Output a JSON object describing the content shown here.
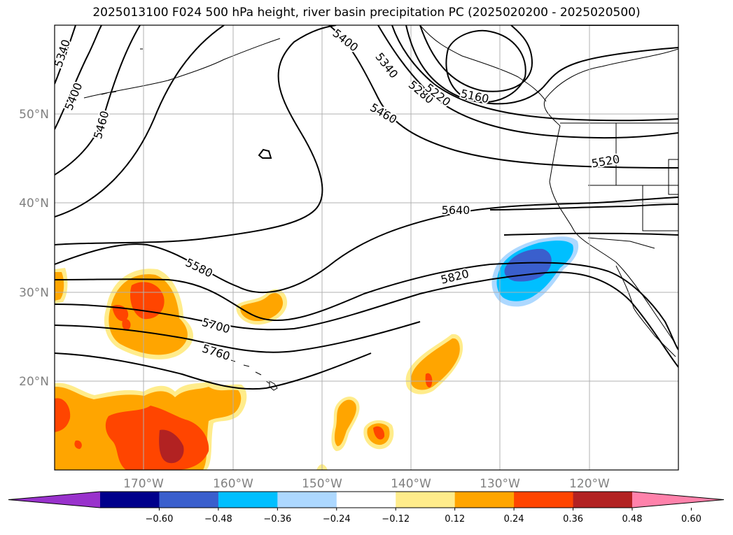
{
  "title": "2025013100 F024 500 hPa height, river basin precipitation PC (2025020200 - 2025020500)",
  "map": {
    "latitude_labels": [
      "50°N",
      "40°N",
      "30°N",
      "20°N"
    ],
    "longitude_labels": [
      "170°W",
      "160°W",
      "150°W",
      "140°W",
      "130°W",
      "120°W"
    ],
    "height_contour_labels": [
      "5340",
      "5400",
      "5460",
      "5400",
      "5340",
      "5280",
      "5220",
      "5160",
      "5460",
      "5520",
      "5640",
      "5580",
      "5820",
      "5700",
      "5760"
    ]
  },
  "colorbar": {
    "colors": [
      "#9932cc",
      "#00008b",
      "#3a5fcd",
      "#00bfff",
      "#add8ff",
      "#ffffff",
      "#ffec8b",
      "#ffa500",
      "#ff4500",
      "#b22222",
      "#ff82ab"
    ],
    "tick_labels": [
      "−0.60",
      "−0.48",
      "−0.36",
      "−0.24",
      "−0.12",
      "0.12",
      "0.24",
      "0.36",
      "0.48",
      "0.60"
    ]
  }
}
